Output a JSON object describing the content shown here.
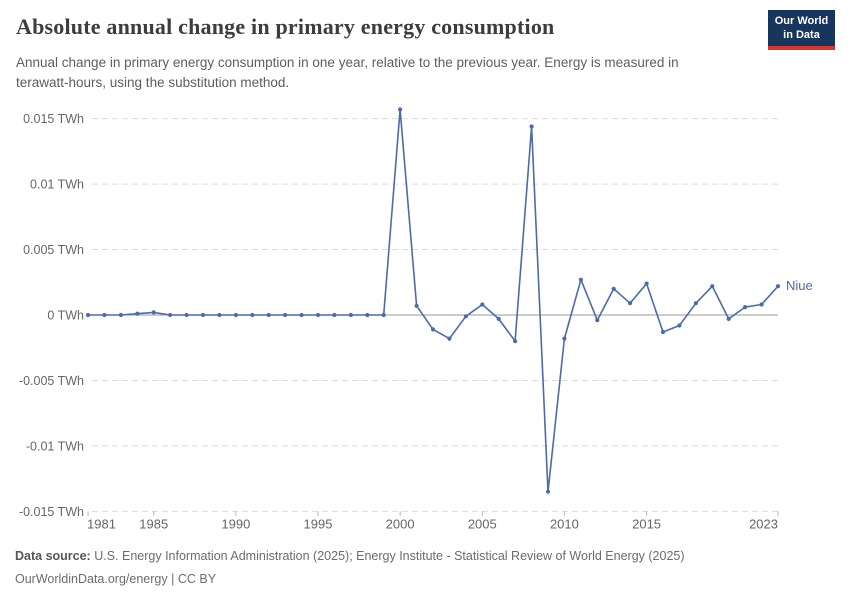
{
  "header": {
    "title": "Absolute annual change in primary energy consumption",
    "subtitle": "Annual change in primary energy consumption in one year, relative to the previous year. Energy is measured in terawatt-hours, using the substitution method.",
    "logo": {
      "line1": "Our World",
      "line2": "in Data",
      "bg_color": "#18355e",
      "accent_color": "#d8352e"
    }
  },
  "footer": {
    "source_label": "Data source:",
    "source_text": " U.S. Energy Information Administration (2025); Energy Institute - Statistical Review of World Energy (2025)",
    "line2_link": "OurWorldinData.org/energy",
    "line2_sep": " | ",
    "line2_license": "CC BY"
  },
  "chart_data": {
    "type": "line",
    "title": "Absolute annual change in primary energy consumption",
    "xlabel": "",
    "ylabel": "TWh",
    "grid": "horizontal-dashed",
    "legend_position": "end-of-line",
    "line_color": "#4C6BA8",
    "entity_label": "Niue",
    "xlim": [
      1981,
      2023
    ],
    "ylim": [
      -0.015,
      0.016
    ],
    "xticks": [
      1981,
      1985,
      1990,
      1995,
      2000,
      2005,
      2010,
      2015,
      2023
    ],
    "yticks": [
      {
        "v": 0.015,
        "label": "0.015 TWh"
      },
      {
        "v": 0.01,
        "label": "0.01 TWh"
      },
      {
        "v": 0.005,
        "label": "0.005 TWh"
      },
      {
        "v": 0,
        "label": "0 TWh"
      },
      {
        "v": -0.005,
        "label": "-0.005 TWh"
      },
      {
        "v": -0.01,
        "label": "-0.01 TWh"
      },
      {
        "v": -0.015,
        "label": "-0.015 TWh"
      }
    ],
    "x": [
      1981,
      1982,
      1983,
      1984,
      1985,
      1986,
      1987,
      1988,
      1989,
      1990,
      1991,
      1992,
      1993,
      1994,
      1995,
      1996,
      1997,
      1998,
      1999,
      2000,
      2001,
      2002,
      2003,
      2004,
      2005,
      2006,
      2007,
      2008,
      2009,
      2010,
      2011,
      2012,
      2013,
      2014,
      2015,
      2016,
      2017,
      2018,
      2019,
      2020,
      2021,
      2022,
      2023
    ],
    "series": [
      {
        "name": "Niue",
        "values": [
          0,
          0,
          0,
          0.0001,
          0.0002,
          0,
          0,
          0,
          0,
          0,
          0,
          0,
          0,
          0,
          0,
          0,
          0,
          0,
          0,
          0.0157,
          0.0007,
          -0.0011,
          -0.0018,
          -0.0001,
          0.0008,
          -0.0003,
          -0.002,
          0.0144,
          -0.0135,
          -0.0018,
          0.0027,
          -0.0004,
          0.002,
          0.0009,
          0.0024,
          -0.0013,
          -0.0008,
          0.0009,
          0.0022,
          -0.0003,
          0.0006,
          0.0008,
          0.0022
        ]
      }
    ]
  }
}
